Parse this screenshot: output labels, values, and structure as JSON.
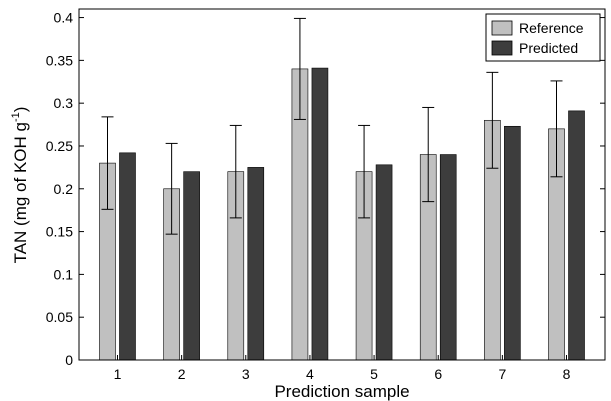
{
  "chart_data": {
    "type": "bar",
    "categories": [
      "1",
      "2",
      "3",
      "4",
      "5",
      "6",
      "7",
      "8"
    ],
    "series": [
      {
        "name": "Reference",
        "values": [
          0.23,
          0.2,
          0.22,
          0.34,
          0.22,
          0.24,
          0.28,
          0.27
        ],
        "color": "#c0c0c0"
      },
      {
        "name": "Predicted",
        "values": [
          0.242,
          0.22,
          0.225,
          0.341,
          0.228,
          0.24,
          0.273,
          0.291
        ],
        "color": "#3d3d3d"
      }
    ],
    "error_bars": {
      "series": "Reference",
      "plus_minus": [
        0.054,
        0.053,
        0.054,
        0.059,
        0.054,
        0.055,
        0.056,
        0.056
      ]
    },
    "yticks": [
      "0",
      "0.05",
      "0.1",
      "0.15",
      "0.2",
      "0.25",
      "0.3",
      "0.35",
      "0.4"
    ],
    "ylim": [
      0,
      0.41
    ],
    "xlabel": "Prediction sample",
    "ylabel_main": "TAN (mg of KOH g",
    "ylabel_sup": "-1",
    "ylabel_end": ")",
    "legend_position": "top-right",
    "grid": false
  }
}
